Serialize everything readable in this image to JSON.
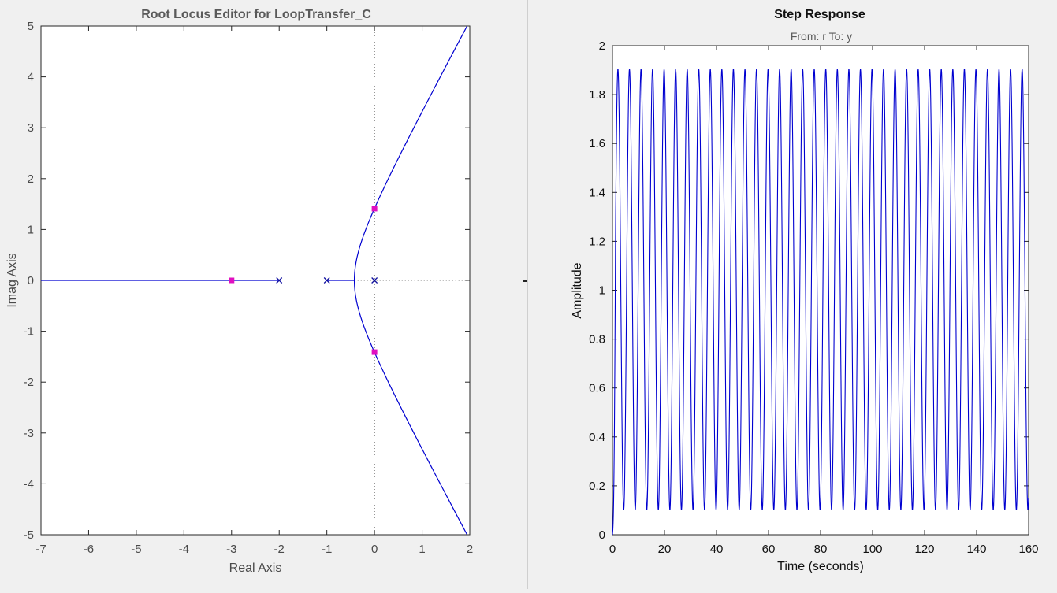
{
  "rootlocus": {
    "title": "Root Locus Editor for LoopTransfer_C",
    "xlabel": "Real Axis",
    "ylabel": "Imag Axis",
    "xticks": [
      "-7",
      "-6",
      "-5",
      "-4",
      "-3",
      "-2",
      "-1",
      "0",
      "1",
      "2"
    ],
    "yticks": [
      "-5",
      "-4",
      "-3",
      "-2",
      "-1",
      "0",
      "1",
      "2",
      "3",
      "4",
      "5"
    ]
  },
  "step": {
    "title": "Step Response",
    "subtitle": "From: r  To: y",
    "xlabel": "Time (seconds)",
    "ylabel": "Amplitude",
    "xticks": [
      "0",
      "20",
      "40",
      "60",
      "80",
      "100",
      "120",
      "140",
      "160"
    ],
    "yticks": [
      "0",
      "0.2",
      "0.4",
      "0.6",
      "0.8",
      "1",
      "1.2",
      "1.4",
      "1.6",
      "1.8",
      "2"
    ]
  },
  "chart_data": [
    {
      "type": "line",
      "name": "root-locus",
      "xlim": [
        -7,
        2
      ],
      "ylim": [
        -5,
        5
      ],
      "grid": false,
      "poles": [
        [
          0,
          0
        ],
        [
          -1,
          0
        ],
        [
          -2,
          0
        ]
      ],
      "closed_loop_poles": [
        [
          0,
          1.41
        ],
        [
          0,
          -1.41
        ],
        [
          -3,
          0
        ]
      ],
      "branches": {
        "real_axis_segments": [
          [
            -7,
            -2
          ],
          [
            -1,
            -0.42
          ]
        ],
        "breakaway_point": [
          -0.42,
          0
        ],
        "asymptote_centroid": -1,
        "asymptote_angles_deg": [
          60,
          -60
        ]
      },
      "colors": {
        "locus": "#0000d0",
        "closed_loop_pole": "#e010c0",
        "pole": "#1010a0"
      }
    },
    {
      "type": "line",
      "name": "step-response",
      "xlim": [
        0,
        160
      ],
      "ylim": [
        0,
        2
      ],
      "grid": false,
      "y_min": 0.1,
      "y_max": 1.905,
      "first_peak_time": 2.1,
      "period": 4.44,
      "y_end": 0.15,
      "colors": {
        "line": "#0000d0"
      }
    }
  ]
}
